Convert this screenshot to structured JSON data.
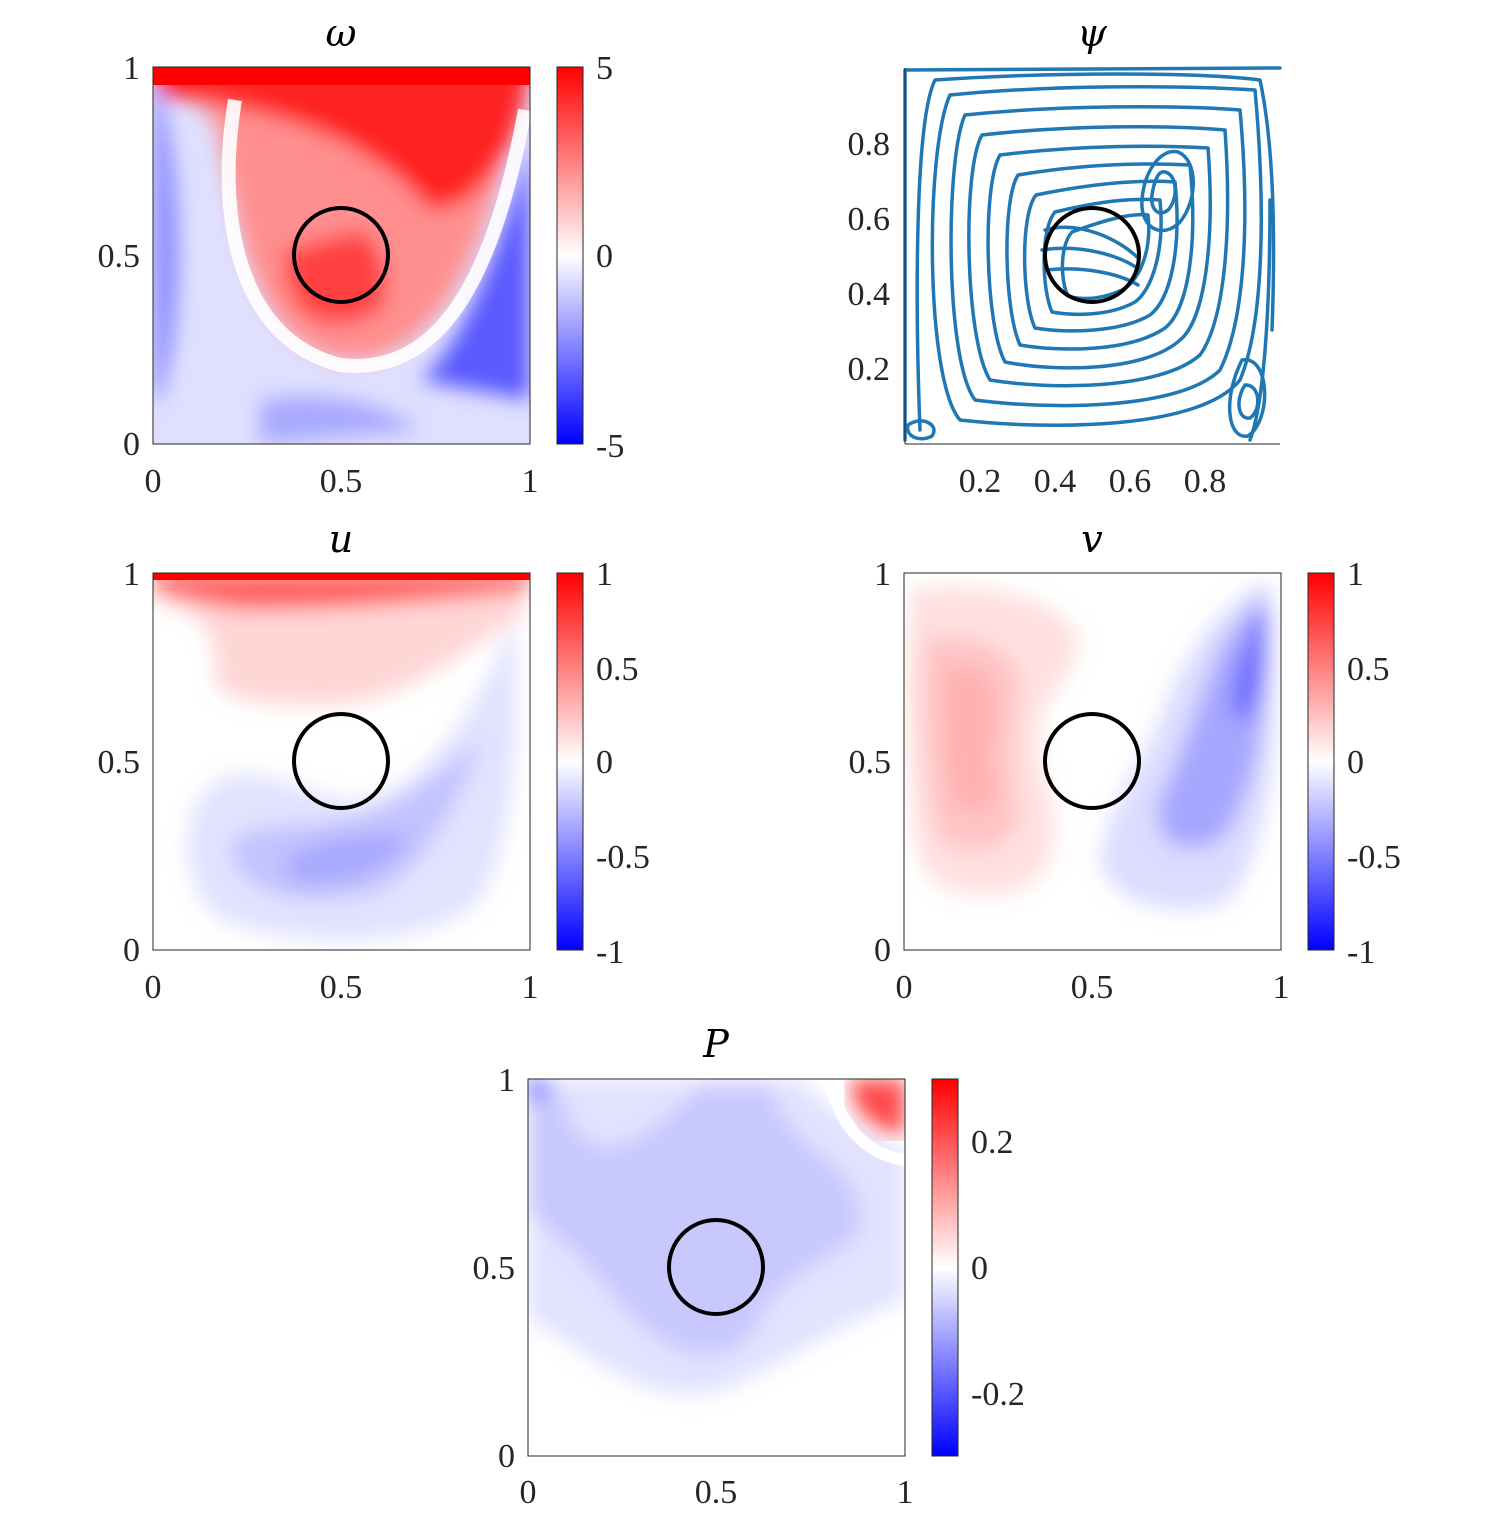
{
  "figure": {
    "panels": [
      {
        "id": "omega",
        "title": "ω"
      },
      {
        "id": "psi",
        "title": "ψ"
      },
      {
        "id": "u",
        "title": "u"
      },
      {
        "id": "v",
        "title": "v"
      },
      {
        "id": "P",
        "title": "P"
      }
    ]
  },
  "chart_data": [
    {
      "type": "heatmap",
      "title": "ω",
      "xlim": [
        0,
        1
      ],
      "ylim": [
        0,
        1
      ],
      "xticks": [
        "0",
        "0.5",
        "1"
      ],
      "yticks": [
        "0",
        "0.5",
        "1"
      ],
      "colorbar": {
        "range": [
          -5,
          5
        ],
        "ticks": [
          "5",
          "0",
          "-5"
        ],
        "colormap": "blue-white-red",
        "levels": 20
      },
      "obstacle": {
        "shape": "circle",
        "center": [
          0.5,
          0.5
        ],
        "radius": 0.125
      },
      "colors": {
        "positive": "#ff0000",
        "negative": "#0000ff",
        "zero": "#ffffff"
      }
    },
    {
      "type": "line",
      "title": "ψ",
      "description_type": "streamlines",
      "xlim": [
        0,
        1
      ],
      "ylim": [
        0,
        1
      ],
      "xticks": [
        "0.2",
        "0.4",
        "0.6",
        "0.8"
      ],
      "yticks": [
        "0.2",
        "0.4",
        "0.6",
        "0.8"
      ],
      "grid": false,
      "vortex_centers": [
        [
          0.5,
          0.5
        ],
        [
          0.7,
          0.68
        ]
      ],
      "corner_eddies": [
        [
          0.9,
          0.1
        ],
        [
          0.04,
          0.04
        ]
      ],
      "obstacle": {
        "shape": "circle",
        "center": [
          0.5,
          0.5
        ],
        "radius": 0.125
      },
      "colors": {
        "line": "#1f77b4"
      }
    },
    {
      "type": "heatmap",
      "title": "u",
      "xlim": [
        0,
        1
      ],
      "ylim": [
        0,
        1
      ],
      "xticks": [
        "0",
        "0.5",
        "1"
      ],
      "yticks": [
        "0",
        "0.5",
        "1"
      ],
      "colorbar": {
        "range": [
          -1,
          1
        ],
        "ticks": [
          "1",
          "0.5",
          "0",
          "-0.5",
          "-1"
        ],
        "colormap": "blue-white-red",
        "levels": 20
      },
      "obstacle": {
        "shape": "circle",
        "center": [
          0.5,
          0.5
        ],
        "radius": 0.125
      }
    },
    {
      "type": "heatmap",
      "title": "v",
      "xlim": [
        0,
        1
      ],
      "ylim": [
        0,
        1
      ],
      "xticks": [
        "0",
        "0.5",
        "1"
      ],
      "yticks": [
        "0",
        "0.5",
        "1"
      ],
      "colorbar": {
        "range": [
          -1,
          1
        ],
        "ticks": [
          "1",
          "0.5",
          "0",
          "-0.5",
          "-1"
        ],
        "colormap": "blue-white-red",
        "levels": 20
      },
      "obstacle": {
        "shape": "circle",
        "center": [
          0.5,
          0.5
        ],
        "radius": 0.125
      }
    },
    {
      "type": "heatmap",
      "title": "P",
      "xlim": [
        0,
        1
      ],
      "ylim": [
        0,
        1
      ],
      "xticks": [
        "0",
        "0.5",
        "1"
      ],
      "yticks": [
        "0",
        "0.5",
        "1"
      ],
      "colorbar": {
        "range": [
          -0.3,
          0.3
        ],
        "ticks": [
          "0.2",
          "0",
          "-0.2"
        ],
        "tick_values": [
          0.2,
          0,
          -0.2
        ],
        "colormap": "blue-white-red",
        "levels": 20
      },
      "obstacle": {
        "shape": "circle",
        "center": [
          0.5,
          0.5
        ],
        "radius": 0.125
      }
    }
  ]
}
